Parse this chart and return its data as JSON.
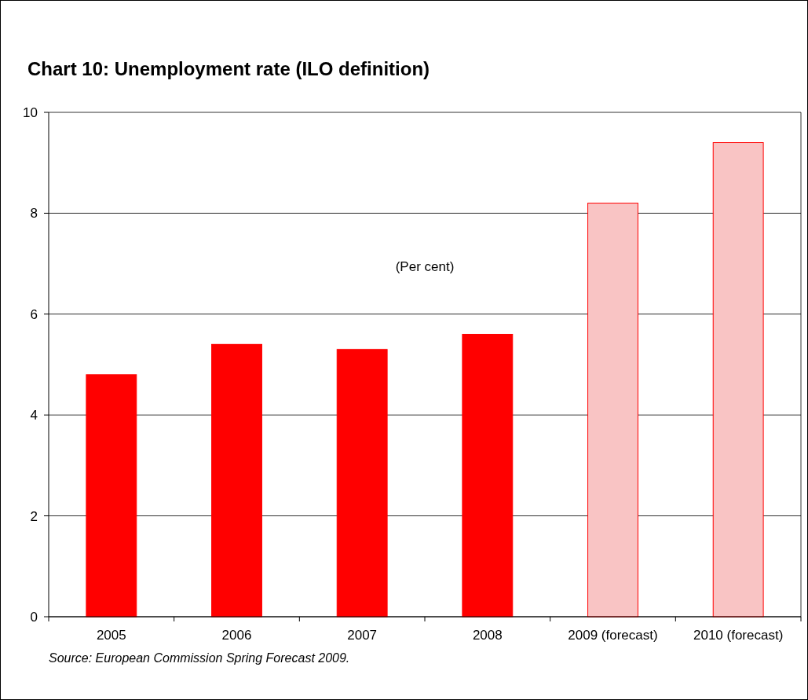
{
  "chart_data": {
    "type": "bar",
    "title": "Chart 10: Unemployment rate (ILO definition)",
    "categories": [
      "2005",
      "2006",
      "2007",
      "2008",
      "2009 (forecast)",
      "2010 (forecast)"
    ],
    "values": [
      4.8,
      5.4,
      5.3,
      5.6,
      8.2,
      9.4
    ],
    "colors": [
      "#ff0000",
      "#ff0000",
      "#ff0000",
      "#ff0000",
      "#f9c4c4",
      "#f9c4c4"
    ],
    "ylim": [
      0,
      10
    ],
    "yticks": [
      0,
      2,
      4,
      6,
      8,
      10
    ],
    "grid": "y",
    "annotations": [
      "(Per cent)",
      "Source: European Commission Spring Forecast 2009."
    ]
  }
}
